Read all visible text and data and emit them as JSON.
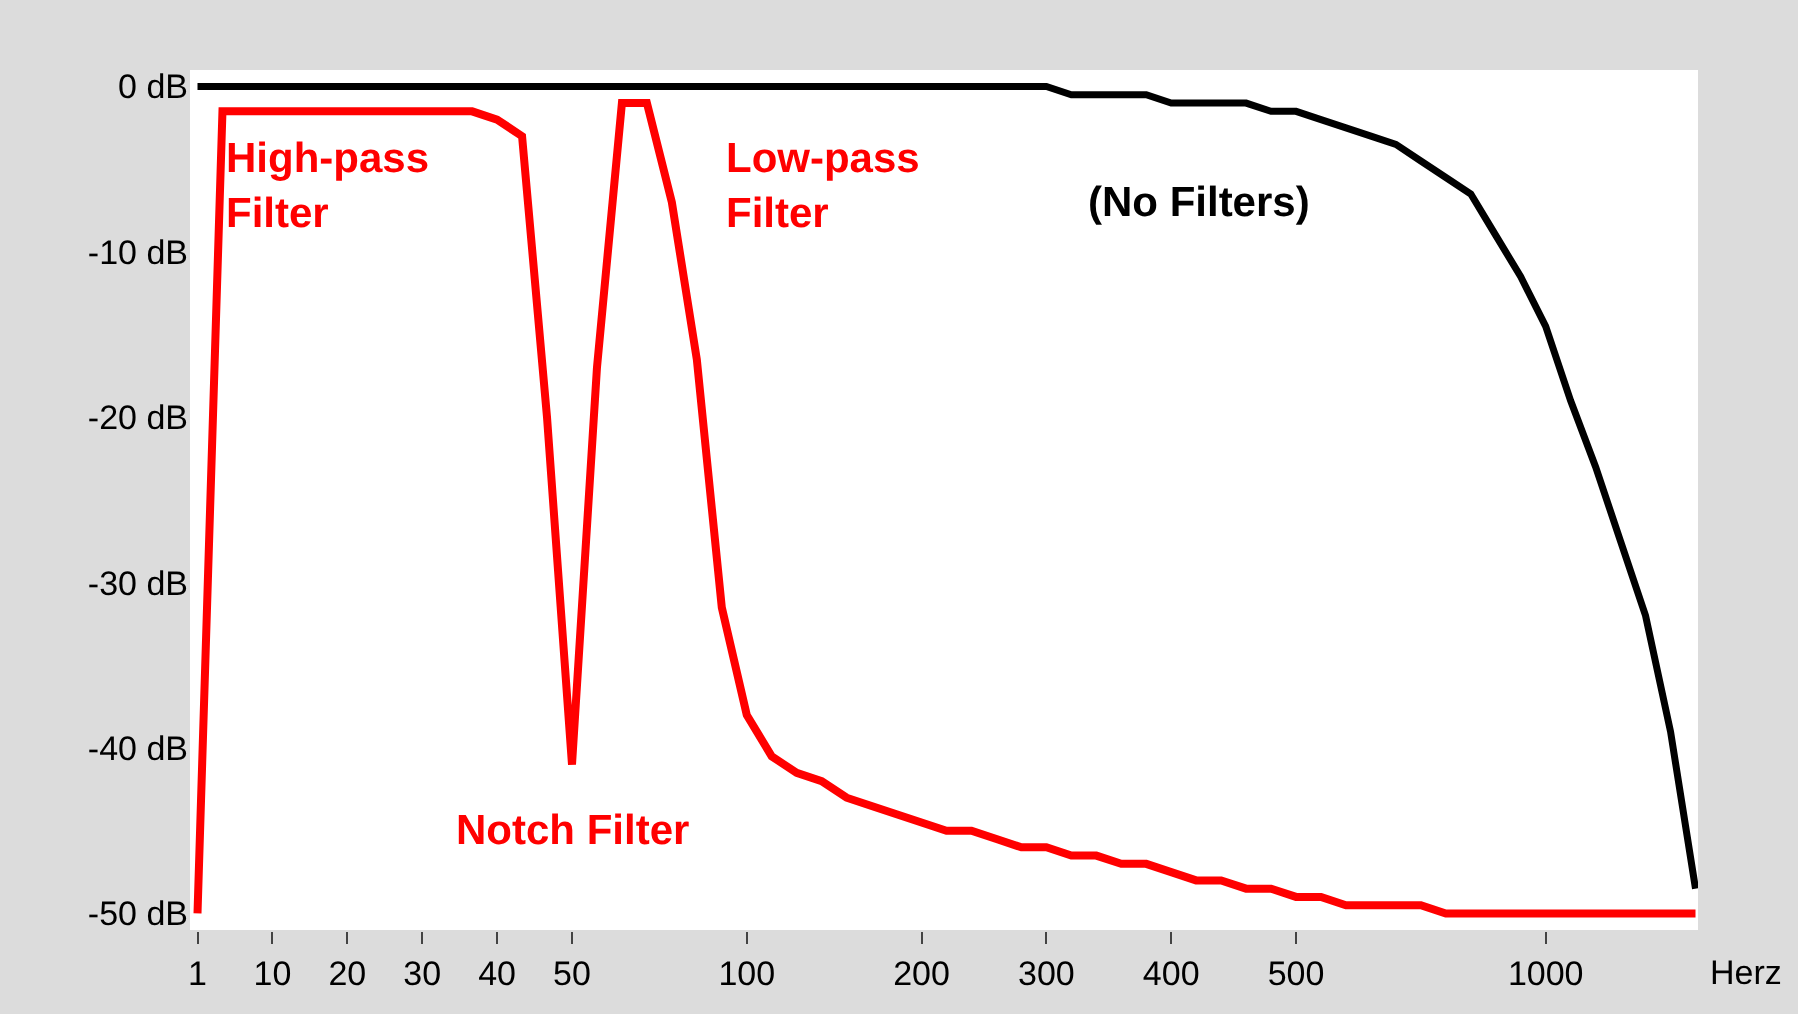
{
  "chart_data": {
    "type": "line",
    "categories": [
      "1",
      null,
      null,
      "10",
      null,
      null,
      "20",
      null,
      null,
      "30",
      null,
      null,
      "40",
      null,
      null,
      "50",
      null,
      null,
      null,
      null,
      null,
      null,
      "100",
      null,
      null,
      null,
      null,
      null,
      null,
      "200",
      null,
      null,
      null,
      null,
      "300",
      null,
      null,
      null,
      null,
      "400",
      null,
      null,
      null,
      null,
      "500",
      null,
      null,
      null,
      null,
      null,
      null,
      null,
      null,
      null,
      "1000",
      null,
      null,
      null,
      null,
      null,
      null
    ],
    "series": [
      {
        "color": "#ff0000",
        "values": [
          -50,
          -1.5,
          -1.5,
          -1.5,
          -1.5,
          -1.5,
          -1.5,
          -1.5,
          -1.5,
          -1.5,
          -1.5,
          -1.5,
          -2,
          -3,
          -20,
          -41,
          -17,
          -1,
          -1,
          -7,
          -16.5,
          -31.5,
          -38,
          -40.5,
          -41.5,
          -42,
          -43,
          -43.5,
          -44,
          -44.5,
          -45,
          -45,
          -45.5,
          -46,
          -46,
          -46.5,
          -46.5,
          -47,
          -47,
          -47.5,
          -48,
          -48,
          -48.5,
          -48.5,
          -49,
          -49,
          -49.5,
          -49.5,
          -49.5,
          -49.5,
          -50,
          -50,
          -50,
          -50,
          -50,
          -50,
          -50,
          -50,
          -50,
          -50,
          -50
        ]
      },
      {
        "color": "#000000",
        "values": [
          0,
          0,
          0,
          0,
          0,
          0,
          0,
          0,
          0,
          0,
          0,
          0,
          0,
          0,
          0,
          0,
          0,
          0,
          0,
          0,
          0,
          0,
          0,
          0,
          0,
          0,
          0,
          0,
          0,
          0,
          0,
          0,
          0,
          0,
          0,
          -0.5,
          -0.5,
          -0.5,
          -0.5,
          -1,
          -1,
          -1,
          -1,
          -1.5,
          -1.5,
          -2,
          -2.5,
          -3,
          -3.5,
          -4.5,
          -5.5,
          -6.5,
          -9,
          -11.5,
          -14.5,
          -19,
          -23,
          -27.5,
          -32,
          -39,
          -48.5
        ]
      }
    ],
    "ylim": [
      -51,
      1
    ],
    "yticks": [
      {
        "value": 0,
        "label": "0 dB"
      },
      {
        "value": -10,
        "label": "-10 dB"
      },
      {
        "value": -20,
        "label": "-20 dB"
      },
      {
        "value": -30,
        "label": "-30 dB"
      },
      {
        "value": -40,
        "label": "-40 dB"
      },
      {
        "value": -50,
        "label": "-50 dB"
      }
    ],
    "xlabel": "Herz",
    "annotations": [
      "High-pass\nFilter",
      "Low-pass\nFilter",
      "Notch Filter",
      "(No Filters)"
    ]
  }
}
